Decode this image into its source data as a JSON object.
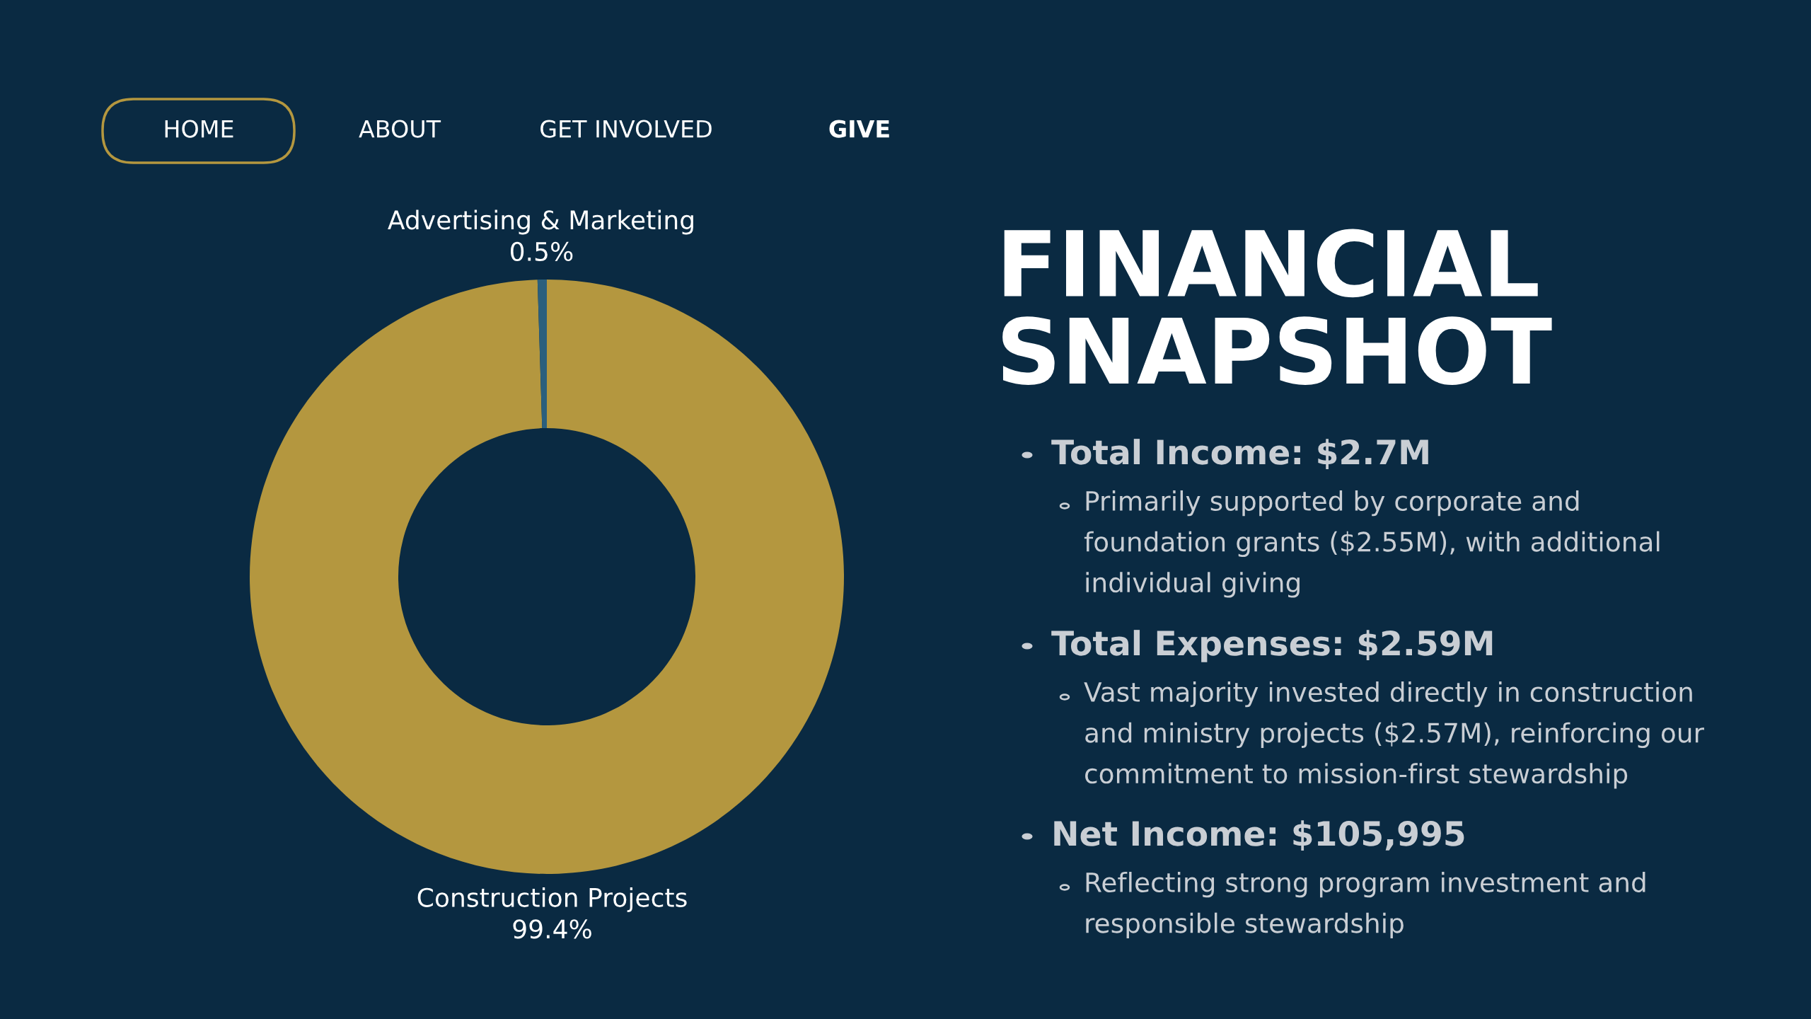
{
  "chart_data": {
    "type": "donut",
    "title": "FINANCIAL SNAPSHOT",
    "categories": [
      "Construction Projects",
      "Advertising & Marketing"
    ],
    "values": [
      99.4,
      0.5
    ],
    "colors": [
      "#b4973f",
      "#2b5f7d"
    ],
    "value_labels": [
      "99.4%",
      "0.5%"
    ],
    "legend": false,
    "annotations": [
      "HOME",
      "ABOUT",
      "GET INVOLVED",
      "GIVE",
      "Total Income: $2.7M",
      "Primarily supported by corporate and foundation grants ($2.55M), with additional individual giving",
      "Total Expenses: $2.59M",
      "Vast majority invested directly in construction and ministry projects ($2.57M), reinforcing our commitment to mission-first stewardship",
      "Net Income: $105,995",
      "Reflecting strong program investment and responsible stewardship"
    ]
  }
}
